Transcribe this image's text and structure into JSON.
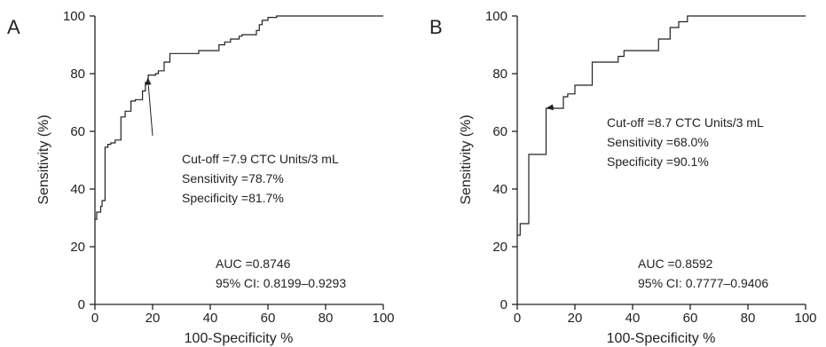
{
  "colors": {
    "line": "#222222",
    "text": "#222222",
    "background": "#ffffff"
  },
  "chart_data": [
    {
      "type": "line",
      "panel_label": "A",
      "xlabel": "100-Specificity %",
      "ylabel": "Sensitivity (%)",
      "xlim": [
        0,
        100
      ],
      "ylim": [
        0,
        100
      ],
      "xticks": [
        "0",
        "20",
        "40",
        "60",
        "80",
        "100"
      ],
      "yticks": [
        "0",
        "20",
        "40",
        "60",
        "80",
        "100"
      ],
      "grid": false,
      "series": [
        {
          "x": [
            0,
            0.6,
            0.6,
            2,
            2,
            2.5,
            2.5,
            3.5,
            3.5,
            4.5,
            4.5,
            5.5,
            5.5,
            7,
            7,
            9,
            9,
            10.5,
            10.5,
            12.5,
            12.5,
            14,
            14,
            16.5,
            16.5,
            17.5,
            17.5,
            18.5,
            18.5,
            21,
            21,
            22,
            22,
            24,
            24,
            26,
            26,
            30,
            30,
            36,
            36,
            43,
            43,
            45,
            45,
            47,
            47,
            50,
            50,
            51,
            51,
            56,
            56,
            57,
            57,
            58,
            58,
            60,
            60,
            63,
            63,
            100
          ],
          "y": [
            29.5,
            29.5,
            32,
            32,
            34,
            34,
            36,
            36,
            54.5,
            54.5,
            55.5,
            55.5,
            56,
            56,
            57,
            57,
            65,
            65,
            67,
            67,
            70.5,
            70.5,
            71,
            71,
            74,
            74,
            77,
            77,
            79.5,
            79.5,
            80,
            80,
            81,
            81,
            84,
            84,
            87,
            87,
            87,
            87,
            88,
            88,
            90,
            90,
            91,
            91,
            92,
            92,
            93,
            93,
            93.5,
            93.5,
            95,
            95,
            97,
            97,
            98.5,
            98.5,
            99.5,
            99.5,
            100,
            100
          ]
        }
      ],
      "cutoff_point": {
        "x": 18.3,
        "y": 78.7
      },
      "annotations": {
        "cutoff": [
          "Cut-off =7.9 CTC Units/3 mL",
          "Sensitivity =78.7%",
          "Specificity =81.7%"
        ],
        "auc": [
          "AUC =0.8746",
          "95% CI: 0.8199–0.9293"
        ]
      }
    },
    {
      "type": "line",
      "panel_label": "B",
      "xlabel": "100-Specificity %",
      "ylabel": "Sensitivity (%)",
      "xlim": [
        0,
        100
      ],
      "ylim": [
        0,
        100
      ],
      "xticks": [
        "0",
        "20",
        "40",
        "60",
        "80",
        "100"
      ],
      "yticks": [
        "0",
        "20",
        "40",
        "60",
        "80",
        "100"
      ],
      "grid": false,
      "series": [
        {
          "x": [
            0,
            1,
            1,
            4,
            4,
            10,
            10,
            16,
            16,
            17.5,
            17.5,
            20,
            20,
            26,
            26,
            35,
            35,
            37,
            37,
            49,
            49,
            53,
            53,
            56,
            56,
            59,
            59,
            100
          ],
          "y": [
            24,
            24,
            28,
            28,
            52,
            52,
            68,
            68,
            72,
            72,
            73,
            73,
            76,
            76,
            84,
            84,
            86,
            86,
            88,
            88,
            92,
            92,
            96,
            96,
            98,
            98,
            100,
            100
          ]
        }
      ],
      "cutoff_point": {
        "x": 9.9,
        "y": 68.0
      },
      "annotations": {
        "cutoff": [
          "Cut-off =8.7 CTC Units/3 mL",
          "Sensitivity =68.0%",
          "Specificity =90.1%"
        ],
        "auc": [
          "AUC =0.8592",
          "95% CI: 0.7777–0.9406"
        ]
      }
    }
  ]
}
